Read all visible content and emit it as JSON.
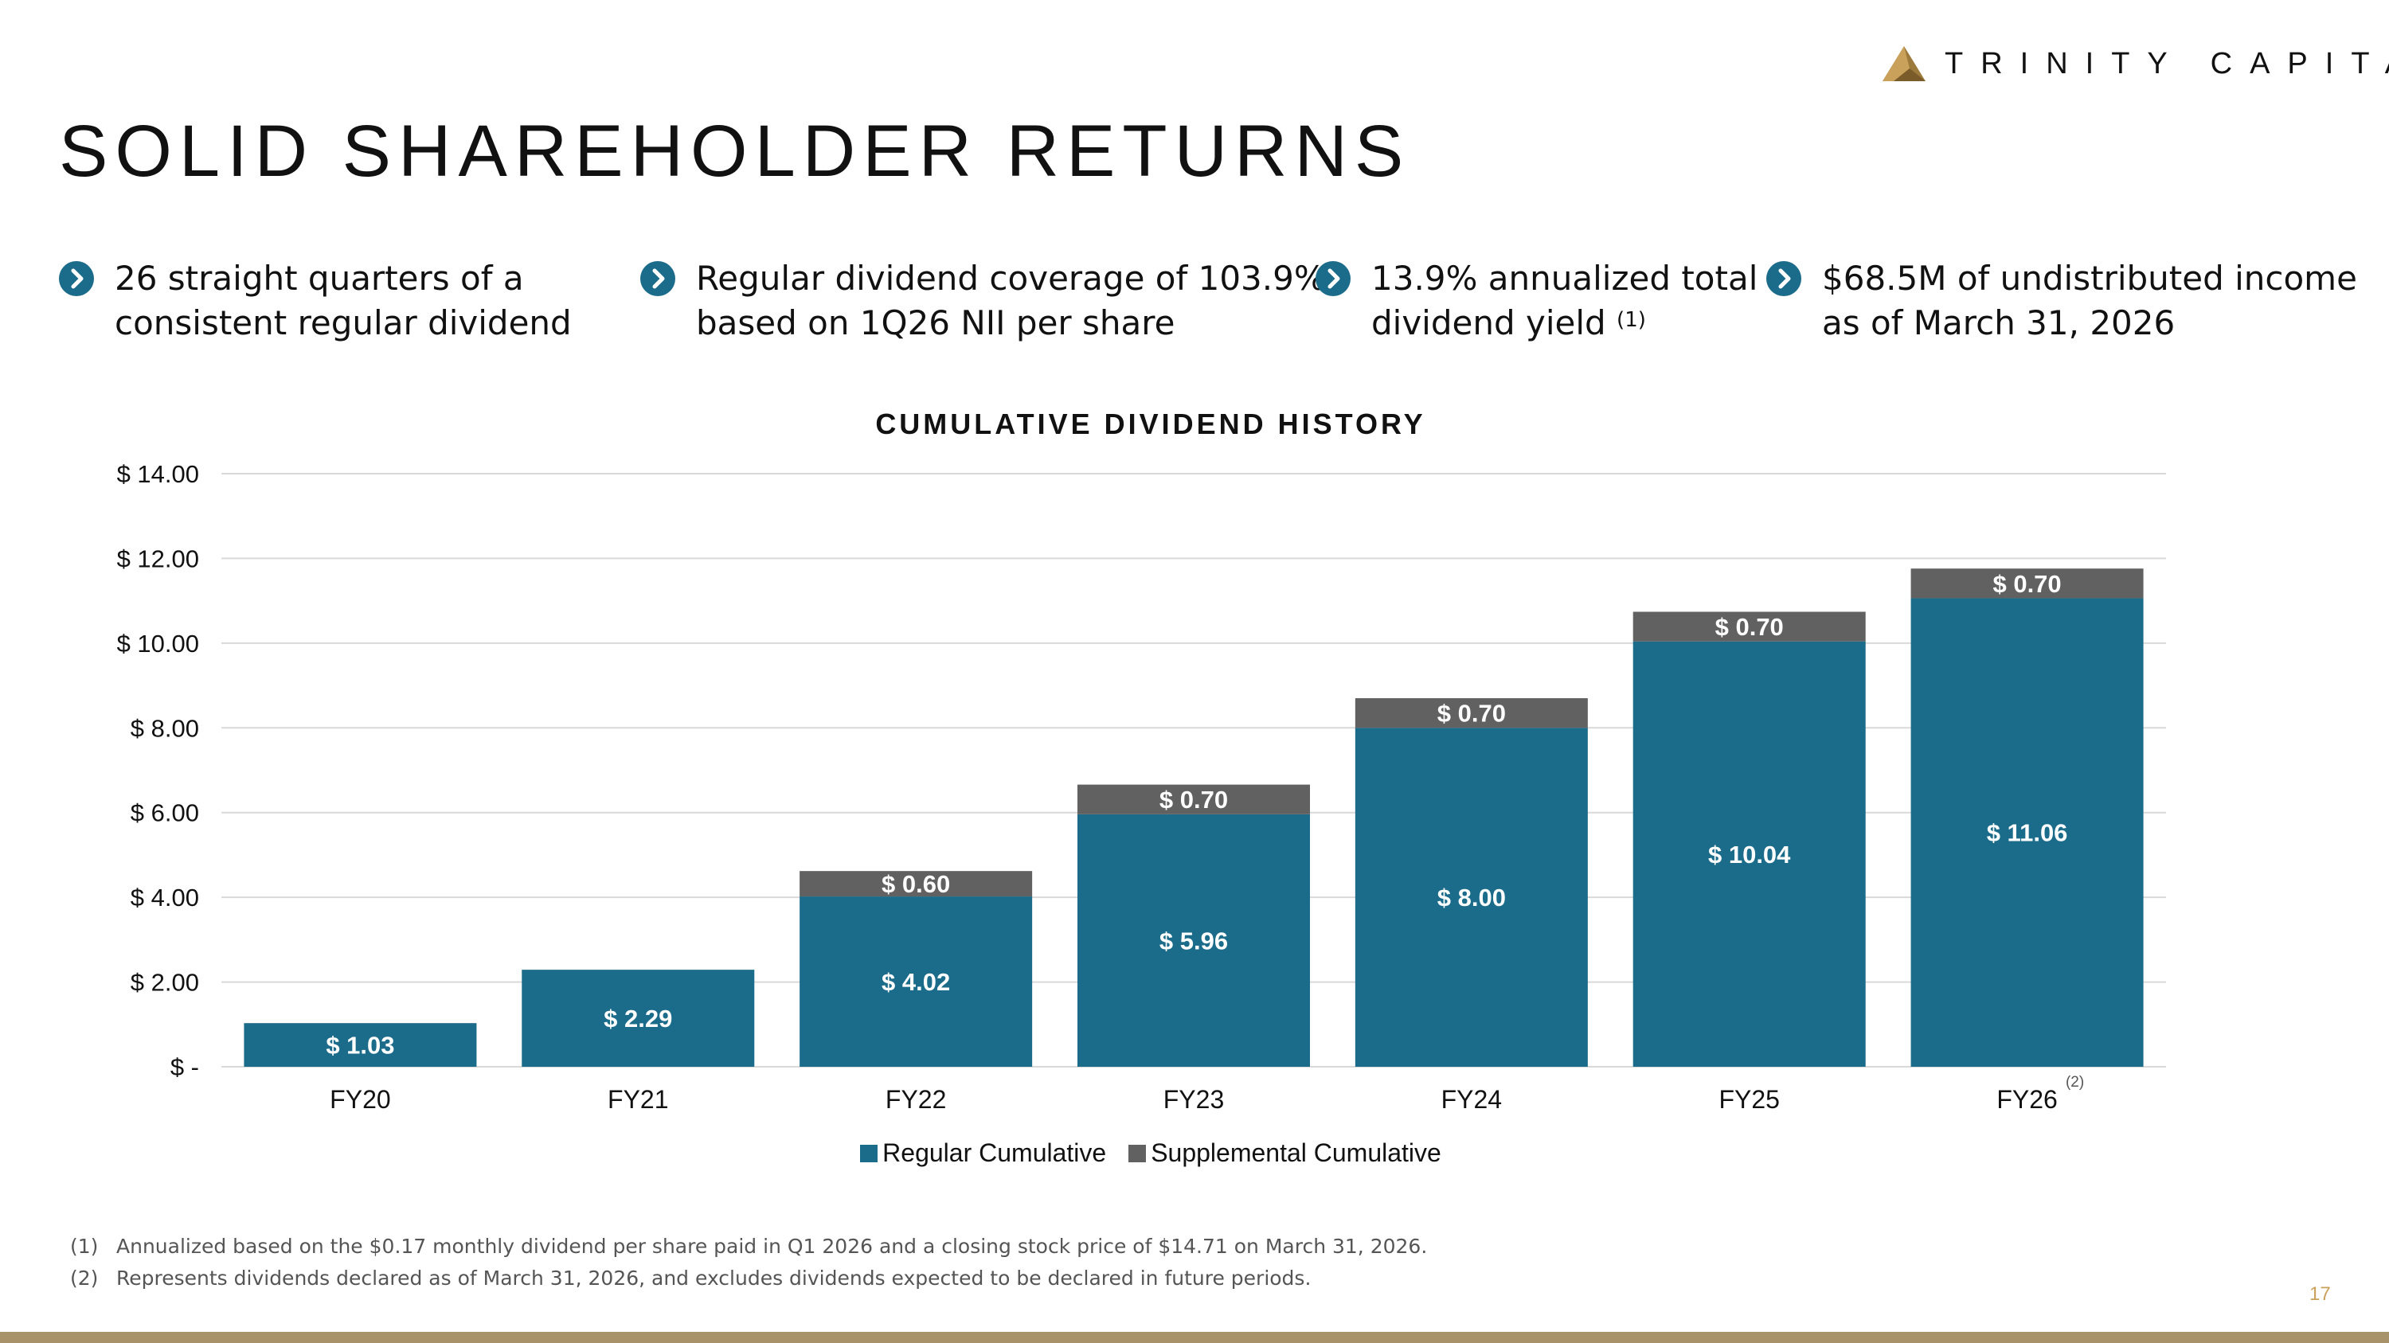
{
  "brand": {
    "name": "TRINITY CAPITAL",
    "logo_color": "#9c7a3c"
  },
  "title": "SOLID SHAREHOLDER RETURNS",
  "highlights": [
    {
      "icon": "chevron-right-icon",
      "line1": "26 straight quarters of a",
      "line2": "consistent regular dividend",
      "sup": ""
    },
    {
      "icon": "chevron-right-icon",
      "line1": "Regular dividend coverage of 103.9%",
      "line2": "based on 1Q26 NII per share",
      "sup": ""
    },
    {
      "icon": "chevron-right-icon",
      "line1": "13.9% annualized total",
      "line2": "dividend yield",
      "sup": "(1)"
    },
    {
      "icon": "chevron-right-icon",
      "line1": "$68.5M of undistributed income",
      "line2": "as of March 31, 2026",
      "sup": ""
    }
  ],
  "chart_data": {
    "type": "bar",
    "stacked": true,
    "title": "CUMULATIVE DIVIDEND HISTORY",
    "categories": [
      "FY20",
      "FY21",
      "FY22",
      "FY23",
      "FY24",
      "FY25",
      "FY26"
    ],
    "category_notes": [
      "",
      "",
      "",
      "",
      "",
      "",
      "(2)"
    ],
    "series": [
      {
        "name": "Regular Cumulative",
        "color": "#1b6b8a",
        "values": [
          1.03,
          2.29,
          4.02,
          5.96,
          8.0,
          10.04,
          11.06
        ],
        "labels": [
          "$ 1.03",
          "$ 2.29",
          "$ 4.02",
          "$ 5.96",
          "$ 8.00",
          "$ 10.04",
          "$ 11.06"
        ]
      },
      {
        "name": "Supplemental Cumulative",
        "color": "#616161",
        "values": [
          0,
          0,
          0.6,
          0.7,
          0.7,
          0.7,
          0.7
        ],
        "labels": [
          "",
          "",
          "$ 0.60",
          "$ 0.70",
          "$ 0.70",
          "$ 0.70",
          "$ 0.70"
        ]
      }
    ],
    "yticks": [
      0,
      2,
      4,
      6,
      8,
      10,
      12,
      14
    ],
    "ytick_labels": [
      "$ -",
      "$ 2.00",
      "$ 4.00",
      "$ 6.00",
      "$ 8.00",
      "$ 10.00",
      "$ 12.00",
      "$ 14.00"
    ],
    "ylim": [
      0,
      14
    ],
    "grid": true,
    "legend": "bottom-center"
  },
  "footnotes": [
    {
      "num": "(1)",
      "text": "Annualized based on the $0.17 monthly dividend per share paid in Q1 2026 and a closing stock price of $14.71 on March 31, 2026."
    },
    {
      "num": "(2)",
      "text": "Represents dividends declared as of March 31, 2026, and excludes dividends expected to be declared in future periods."
    }
  ],
  "page_number": "17"
}
